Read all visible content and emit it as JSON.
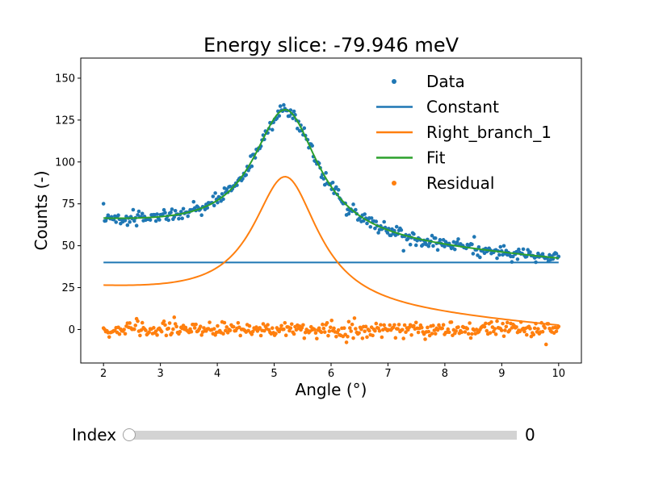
{
  "chart_data": {
    "type": "scatter",
    "title": "Energy slice: -79.946 meV",
    "xlabel": "Angle (°)",
    "ylabel": "Counts (-)",
    "xlim": [
      1.6,
      10.4
    ],
    "ylim": [
      -20,
      162
    ],
    "xticks": [
      2,
      3,
      4,
      5,
      6,
      7,
      8,
      9,
      10
    ],
    "yticks": [
      0,
      25,
      50,
      75,
      100,
      125,
      150
    ],
    "grid": false,
    "legend_position": "top-right",
    "model": {
      "constant": 40,
      "peak_center": 5.2,
      "peak_half_width": 0.7,
      "peak_amplitude": 100,
      "peak_offset": 23,
      "peak_offset_scale": 3.5
    },
    "series": [
      {
        "name": "Data",
        "kind": "scatter",
        "color": "#1f77b4",
        "x_range": [
          2,
          10
        ],
        "n_points": 400
      },
      {
        "name": "Constant",
        "kind": "line",
        "color": "#1f77b4"
      },
      {
        "name": "Right_branch_1",
        "kind": "line",
        "color": "#ff7f0e"
      },
      {
        "name": "Fit",
        "kind": "line",
        "color": "#2ca02c"
      },
      {
        "name": "Residual",
        "kind": "scatter",
        "color": "#ff7f0e",
        "x_range": [
          2,
          10
        ],
        "n_points": 400
      }
    ]
  },
  "slider": {
    "label": "Index",
    "value": "0",
    "position": 0
  }
}
